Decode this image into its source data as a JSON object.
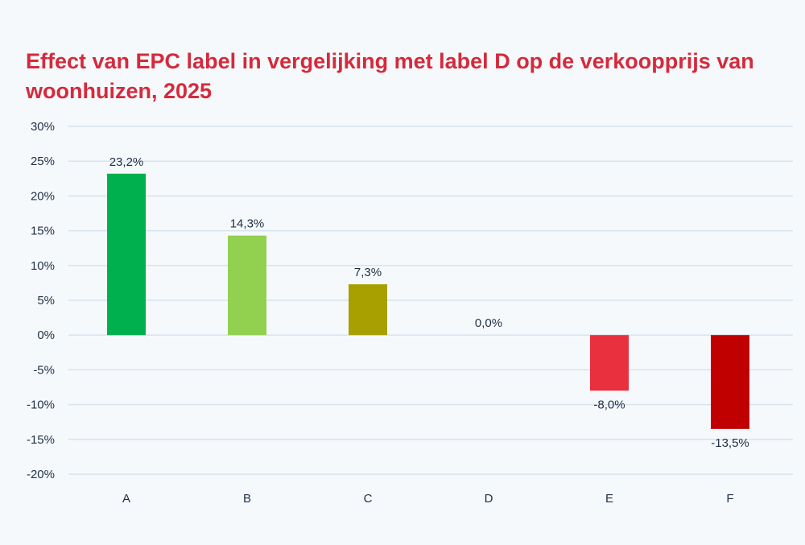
{
  "chart_data": {
    "type": "bar",
    "title": "Effect van EPC label in vergelijking met label D op de verkoopprijs van woonhuizen, 2025",
    "xlabel": "",
    "ylabel": "",
    "categories": [
      "A",
      "B",
      "C",
      "D",
      "E",
      "F"
    ],
    "values": [
      23.2,
      14.3,
      7.3,
      0.0,
      -8.0,
      -13.5
    ],
    "data_labels": [
      "23,2%",
      "14,3%",
      "7,3%",
      "0,0%",
      "-8,0%",
      "-13,5%"
    ],
    "colors": [
      "#00b04f",
      "#92d050",
      "#a8a000",
      "#ffffff",
      "#e8303f",
      "#c00000"
    ],
    "ylim": [
      -20,
      30
    ],
    "yticks": [
      30,
      25,
      20,
      15,
      10,
      5,
      0,
      -5,
      -10,
      -15,
      -20
    ],
    "ytick_labels": [
      "30%",
      "25%",
      "20%",
      "15%",
      "10%",
      "5%",
      "0%",
      "-5%",
      "-10%",
      "-15%",
      "-20%"
    ],
    "grid": true,
    "legend": "none",
    "title_color": "#d52a3c"
  }
}
